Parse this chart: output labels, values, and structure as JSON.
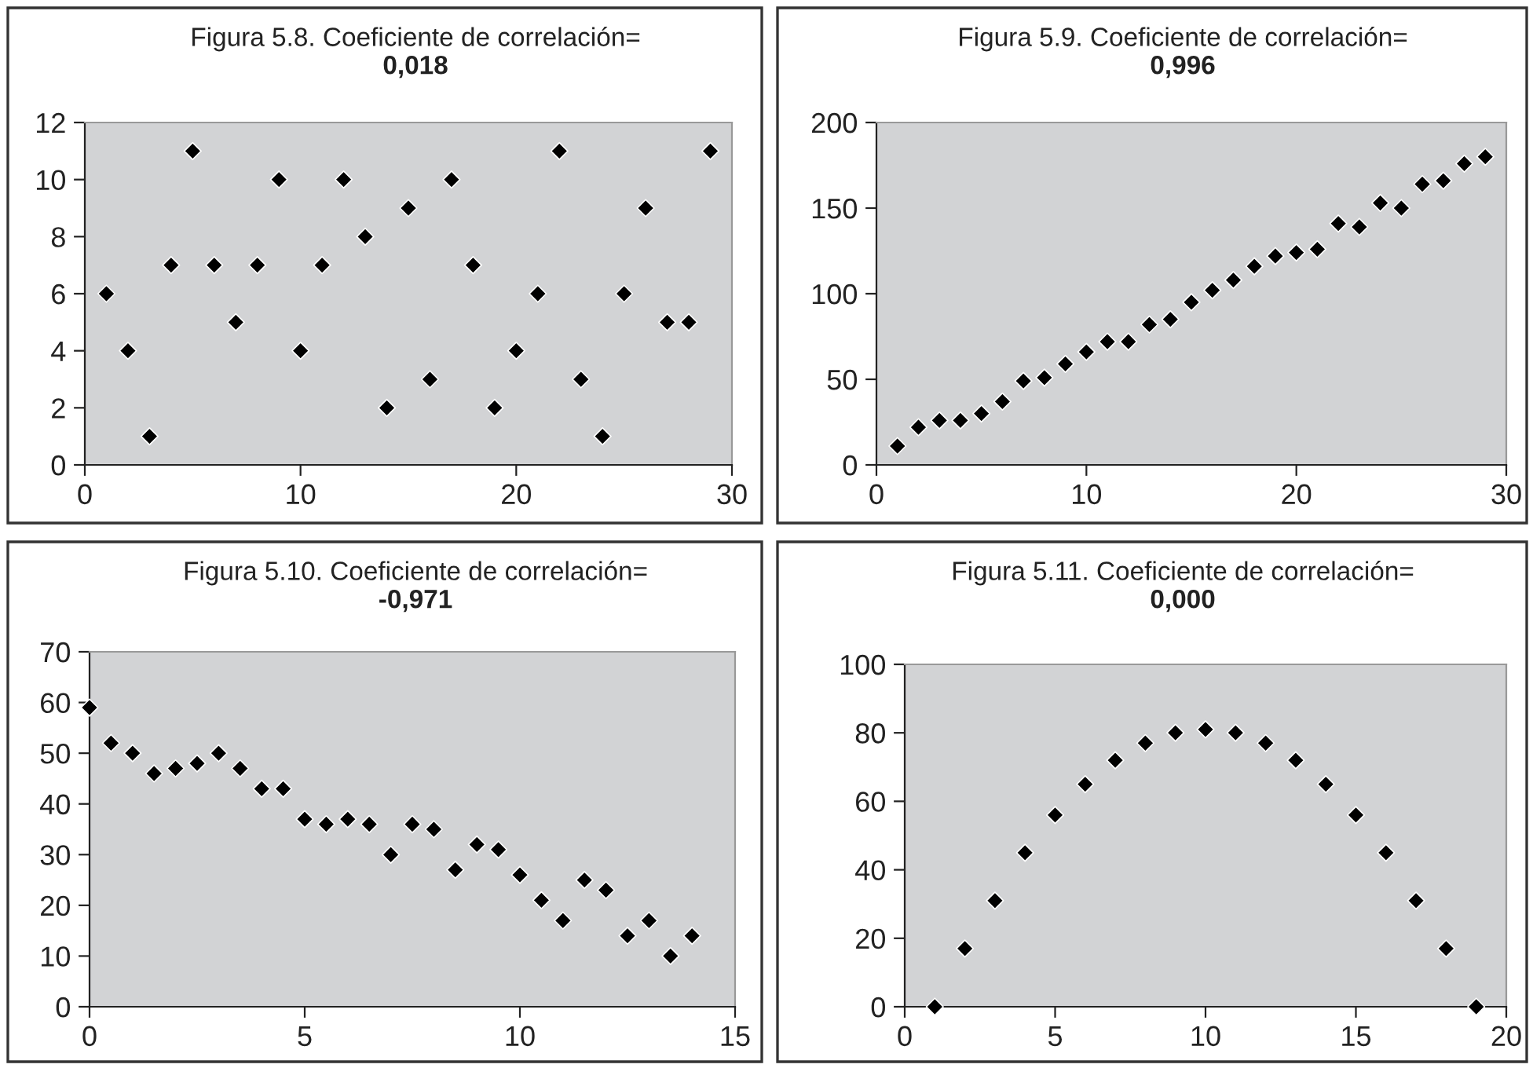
{
  "chart_data": [
    {
      "type": "scatter",
      "title": "Figura 5.8. Coeficiente de correlación=",
      "subtitle": "0,018",
      "x": [
        1,
        2,
        3,
        4,
        5,
        6,
        7,
        8,
        9,
        10,
        11,
        12,
        13,
        14,
        15,
        16,
        17,
        18,
        19,
        20,
        21,
        22,
        23,
        24,
        25,
        26,
        27,
        28,
        29
      ],
      "values": [
        6,
        4,
        1,
        7,
        11,
        7,
        5,
        7,
        10,
        4,
        7,
        10,
        8,
        2,
        9,
        3,
        10,
        7,
        2,
        4,
        6,
        11,
        3,
        1,
        6,
        9,
        5,
        5,
        11
      ],
      "color": "#000000",
      "marker": "diamond",
      "xlim": [
        0,
        30
      ],
      "xticks": [
        0,
        10,
        20,
        30
      ],
      "ylim": [
        0,
        12
      ],
      "yticks": [
        0,
        2,
        4,
        6,
        8,
        10,
        12
      ],
      "grid": false,
      "legend": false
    },
    {
      "type": "scatter",
      "title": "Figura 5.9. Coeficiente de correlación=",
      "subtitle": "0,996",
      "x": [
        1,
        2,
        3,
        4,
        5,
        6,
        7,
        8,
        9,
        10,
        11,
        12,
        13,
        14,
        15,
        16,
        17,
        18,
        19,
        20,
        21,
        22,
        23,
        24,
        25,
        26,
        27,
        28,
        29
      ],
      "values": [
        11,
        22,
        26,
        26,
        30,
        37,
        49,
        51,
        59,
        66,
        72,
        72,
        82,
        85,
        95,
        102,
        108,
        116,
        122,
        124,
        126,
        141,
        139,
        153,
        150,
        164,
        166,
        176,
        180
      ],
      "color": "#000000",
      "marker": "diamond",
      "xlim": [
        0,
        30
      ],
      "xticks": [
        0,
        10,
        20,
        30
      ],
      "ylim": [
        0,
        200
      ],
      "yticks": [
        0,
        50,
        100,
        150,
        200
      ],
      "grid": false,
      "legend": false
    },
    {
      "type": "scatter",
      "title": "Figura 5.10. Coeficiente de correlación=",
      "subtitle": "-0,971",
      "x": [
        0,
        0.5,
        1,
        1.5,
        2,
        2.5,
        3,
        3.5,
        4,
        4.5,
        5,
        5.5,
        6,
        6.5,
        7,
        7.5,
        8,
        8.5,
        9,
        9.5,
        10,
        10.5,
        11,
        11.5,
        12,
        12.5,
        13,
        13.5,
        14
      ],
      "values": [
        59,
        52,
        50,
        46,
        47,
        48,
        50,
        47,
        43,
        43,
        37,
        36,
        37,
        36,
        30,
        36,
        35,
        27,
        32,
        31,
        26,
        21,
        17,
        25,
        23,
        14,
        17,
        10,
        14
      ],
      "color": "#000000",
      "marker": "diamond",
      "xlim": [
        0,
        15
      ],
      "xticks": [
        0,
        5,
        10,
        15
      ],
      "ylim": [
        0,
        70
      ],
      "yticks": [
        0,
        10,
        20,
        30,
        40,
        50,
        60,
        70
      ],
      "grid": false,
      "legend": false
    },
    {
      "type": "scatter",
      "title": "Figura 5.11. Coeficiente de correlación=",
      "subtitle": "0,000",
      "x": [
        1,
        2,
        3,
        4,
        5,
        6,
        7,
        8,
        9,
        10,
        11,
        12,
        13,
        14,
        15,
        16,
        17,
        18,
        19
      ],
      "values": [
        0,
        17,
        31,
        45,
        56,
        65,
        72,
        77,
        80,
        81,
        80,
        77,
        72,
        65,
        56,
        45,
        31,
        17,
        0
      ],
      "color": "#000000",
      "marker": "diamond",
      "xlim": [
        0,
        20
      ],
      "xticks": [
        0,
        5,
        10,
        15,
        20
      ],
      "ylim": [
        0,
        100
      ],
      "yticks": [
        0,
        20,
        40,
        60,
        80,
        100
      ],
      "grid": false,
      "legend": false
    }
  ]
}
